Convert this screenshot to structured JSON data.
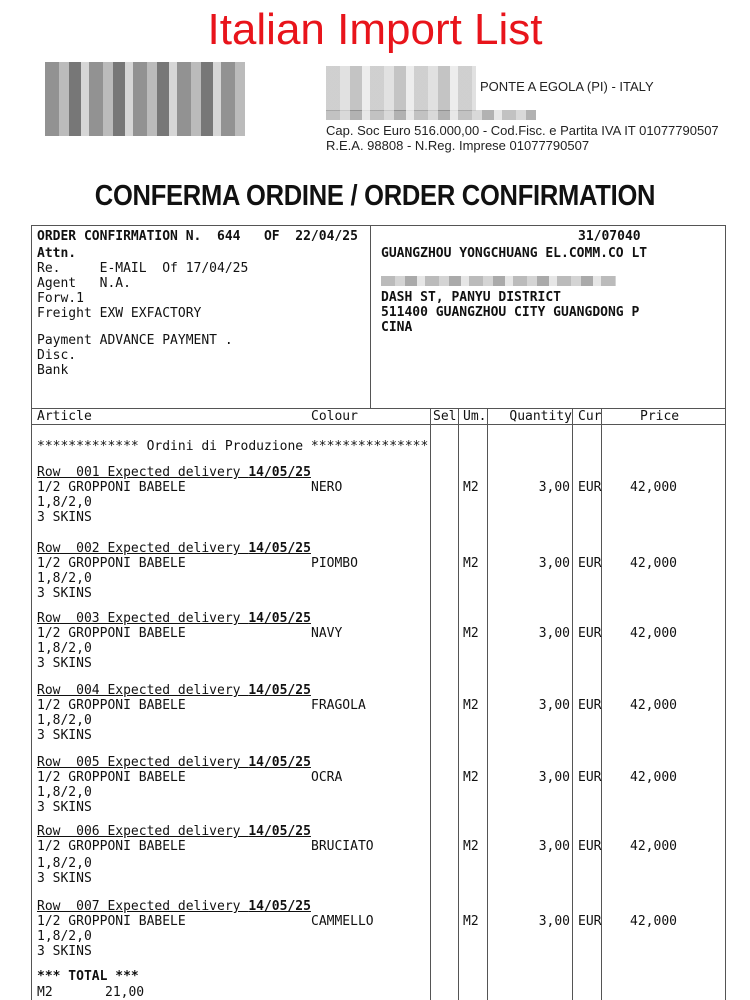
{
  "banner_title": "Italian Import List",
  "company": {
    "city": "PONTE A EGOLA (PI) - ITALY",
    "capital": "Cap. Soc Euro 516.000,00 - Cod.Fisc. e Partita IVA IT 01077790507",
    "rea": "R.E.A. 98808 - N.Reg. Imprese 01077790507"
  },
  "doc_title": "CONFERMA ORDINE / ORDER CONFIRMATION",
  "order": {
    "header": "ORDER CONFIRMATION N.  644   OF  22/04/25",
    "attn": "Attn.",
    "re": "Re.     E-MAIL  Of 17/04/25",
    "agent": "Agent   N.A.",
    "forw": "Forw.1",
    "freight": "Freight EXW EXFACTORY",
    "payment": "Payment ADVANCE PAYMENT .",
    "disc": "Disc.",
    "bank": "Bank"
  },
  "customer": {
    "code": "31/07040",
    "name": "GUANGZHOU YONGCHUANG EL.COMM.CO LT",
    "street": "DASH ST, PANYU DISTRICT",
    "city": "511400 GUANGZHOU CITY GUANGDONG P",
    "country": "CINA"
  },
  "columns": {
    "article": "Article",
    "colour": "Colour",
    "sel": "Sel",
    "um": "Um.",
    "quantity": "Quantity",
    "cur": "Cur",
    "price": "Price"
  },
  "section": "************* Ordini di Produzione ***************",
  "rows": [
    {
      "label": "Row  001 Expected delivery ",
      "date": "14/05/25",
      "article": "1/2 GROPPONI BABELE",
      "spec": "1,8/2,0",
      "skins": "3 SKINS",
      "colour": "NERO",
      "um": "M2",
      "qty": "3,00",
      "cur": "EUR",
      "price": "42,000"
    },
    {
      "label": "Row  002 Expected delivery ",
      "date": "14/05/25",
      "article": "1/2 GROPPONI BABELE",
      "spec": "1,8/2,0",
      "skins": "3 SKINS",
      "colour": "PIOMBO",
      "um": "M2",
      "qty": "3,00",
      "cur": "EUR",
      "price": "42,000"
    },
    {
      "label": "Row  003 Expected delivery ",
      "date": "14/05/25",
      "article": "1/2 GROPPONI BABELE",
      "spec": "1,8/2,0",
      "skins": "3 SKINS",
      "colour": "NAVY",
      "um": "M2",
      "qty": "3,00",
      "cur": "EUR",
      "price": "42,000"
    },
    {
      "label": "Row  004 Expected delivery ",
      "date": "14/05/25",
      "article": "1/2 GROPPONI BABELE",
      "spec": "1,8/2,0",
      "skins": "3 SKINS",
      "colour": "FRAGOLA",
      "um": "M2",
      "qty": "3,00",
      "cur": "EUR",
      "price": "42,000"
    },
    {
      "label": "Row  005 Expected delivery ",
      "date": "14/05/25",
      "article": "1/2 GROPPONI BABELE",
      "spec": "1,8/2,0",
      "skins": "3 SKINS",
      "colour": "OCRA",
      "um": "M2",
      "qty": "3,00",
      "cur": "EUR",
      "price": "42,000"
    },
    {
      "label": "Row  006 Expected delivery ",
      "date": "14/05/25",
      "article": "1/2 GROPPONI BABELE",
      "spec": "1,8/2,0",
      "skins": "3 SKINS",
      "colour": "BRUCIATO",
      "um": "M2",
      "qty": "3,00",
      "cur": "EUR",
      "price": "42,000"
    },
    {
      "label": "Row  007 Expected delivery ",
      "date": "14/05/25",
      "article": "1/2 GROPPONI BABELE",
      "spec": "1,8/2,0",
      "skins": "3 SKINS",
      "colour": "CAMMELLO",
      "um": "M2",
      "qty": "3,00",
      "cur": "EUR",
      "price": "42,000"
    }
  ],
  "total": {
    "label": "*** TOTAL ***",
    "um": "M2",
    "value": "21,00"
  }
}
